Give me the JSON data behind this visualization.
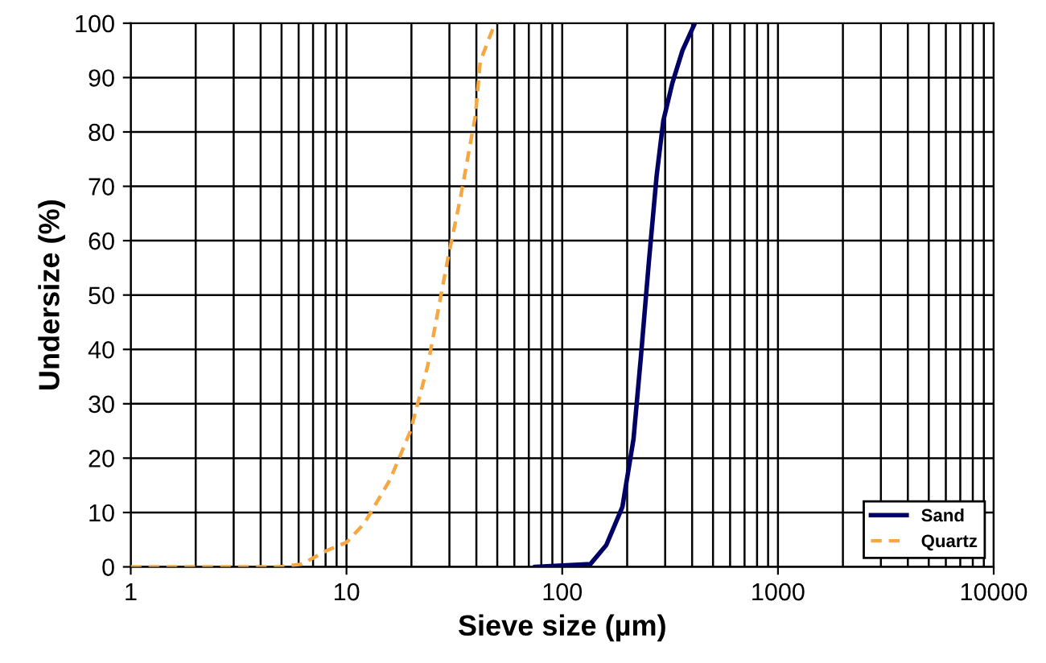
{
  "chart_data": {
    "type": "line",
    "xlabel": "Sieve size (µm)",
    "ylabel": "Undersize (%)",
    "log": "x",
    "xlim": [
      1,
      10000
    ],
    "xticks": [
      1,
      10,
      100,
      1000,
      10000
    ],
    "ylim": [
      0,
      100
    ],
    "yticks": [
      0,
      10,
      20,
      30,
      40,
      50,
      60,
      70,
      80,
      90,
      100
    ],
    "grid": true,
    "legend": "bottom right",
    "series": [
      {
        "name": "Sand",
        "color": "#000066",
        "line_style": "solid",
        "x": [
          75,
          135,
          160,
          190,
          214,
          232,
          252,
          274,
          294,
          324,
          361,
          412
        ],
        "values": [
          0,
          0.5,
          4,
          11,
          23.5,
          39,
          56,
          72,
          82,
          89,
          95,
          100
        ]
      },
      {
        "name": "Quartz",
        "color": "#f5a742",
        "line_style": "dashed",
        "x": [
          1,
          4.9,
          6.2,
          8.1,
          10,
          12.1,
          15.9,
          19.8,
          23.8,
          29.6,
          33.8,
          39.6,
          41.7,
          47.7,
          50
        ],
        "values": [
          0,
          0,
          0.5,
          3,
          4.5,
          8,
          16,
          25,
          37,
          57,
          68,
          83,
          93,
          99,
          100
        ]
      }
    ]
  }
}
